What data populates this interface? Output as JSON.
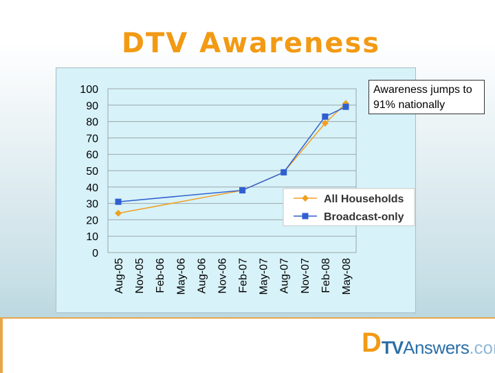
{
  "title": "DTV Awareness",
  "callout": "Awareness jumps to 91% nationally",
  "logo": {
    "d": "D",
    "tv": "TV",
    "answers": "Answers",
    "com": ".com"
  },
  "colors": {
    "title": "#f29a14",
    "all_households": "#f0a020",
    "broadcast_only": "#2f5fd0",
    "logo_blue": "#2a6fa8"
  },
  "chart_data": {
    "type": "line",
    "categories": [
      "Aug-05",
      "Nov-05",
      "Feb-06",
      "May-06",
      "Aug-06",
      "Nov-06",
      "Feb-07",
      "May-07",
      "Aug-07",
      "Nov-07",
      "Feb-08",
      "May-08"
    ],
    "yticks": [
      "0",
      "10",
      "20",
      "30",
      "40",
      "50",
      "60",
      "70",
      "80",
      "90",
      "100"
    ],
    "ylim": [
      0,
      100
    ],
    "grid": true,
    "legend_position": "right",
    "series": [
      {
        "name": "All Households",
        "marker": "diamond",
        "points": [
          {
            "x": "Aug-05",
            "y": 24
          },
          {
            "x": "Feb-07",
            "y": 38
          },
          {
            "x": "Aug-07",
            "y": 49
          },
          {
            "x": "Feb-08",
            "y": 79
          },
          {
            "x": "May-08",
            "y": 91
          }
        ]
      },
      {
        "name": "Broadcast-only",
        "marker": "square",
        "points": [
          {
            "x": "Aug-05",
            "y": 31
          },
          {
            "x": "Feb-07",
            "y": 38
          },
          {
            "x": "Aug-07",
            "y": 49
          },
          {
            "x": "Feb-08",
            "y": 83
          },
          {
            "x": "May-08",
            "y": 89
          }
        ]
      }
    ]
  }
}
